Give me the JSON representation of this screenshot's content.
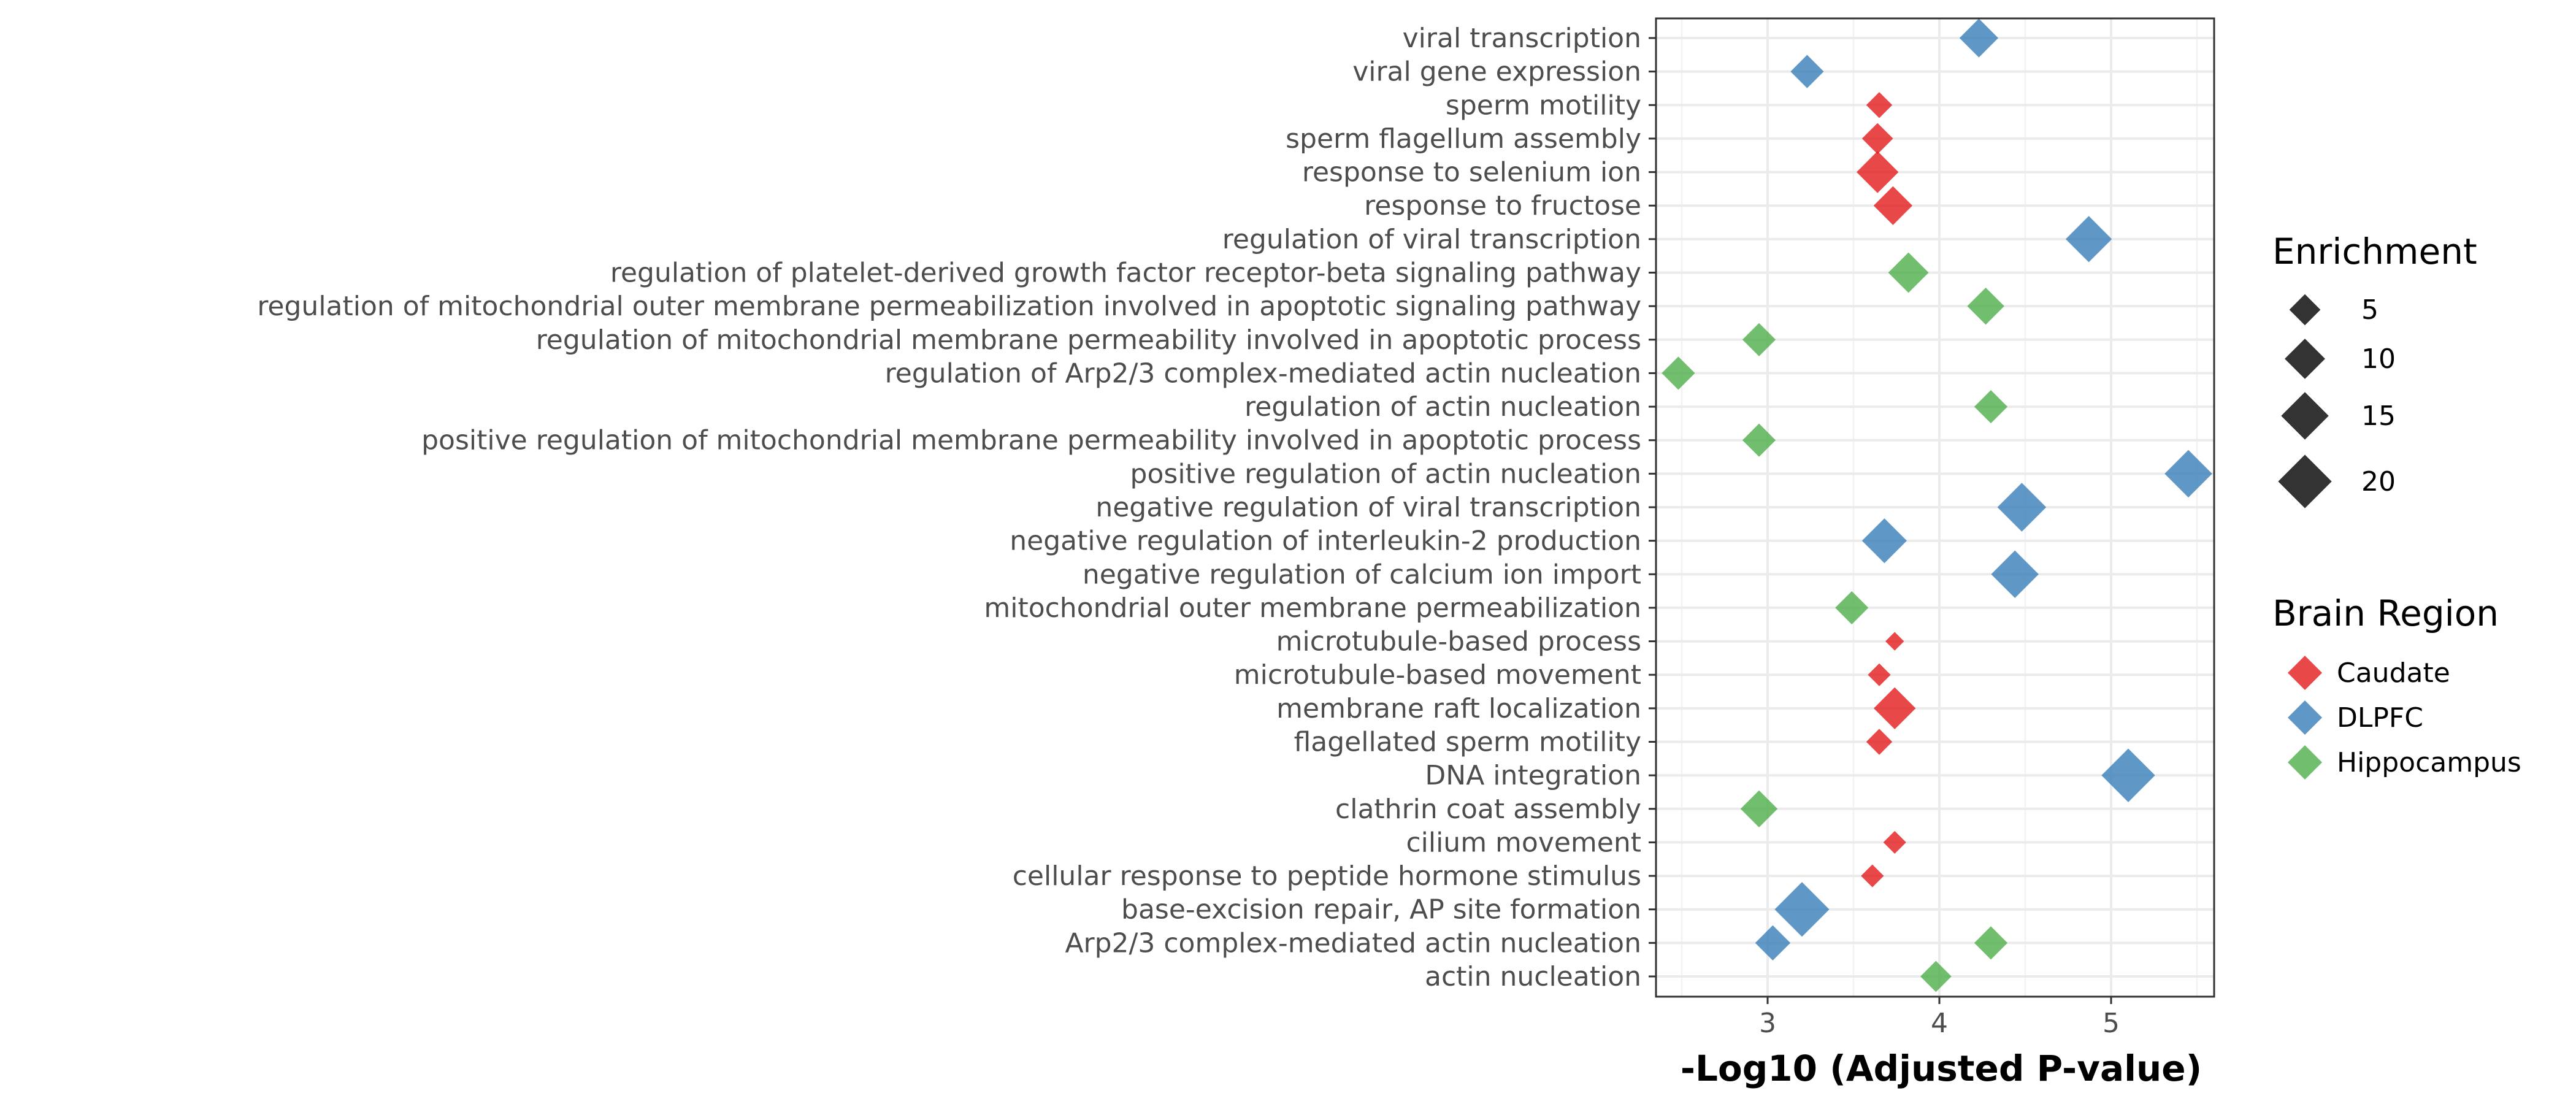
{
  "chart_data": {
    "type": "scatter",
    "xlabel": "-Log10 (Adjusted P-value)",
    "xlim": [
      2.35,
      5.6
    ],
    "xticks": [
      "3",
      "4",
      "5"
    ],
    "xtick_values": [
      3,
      4,
      5
    ],
    "grid": true,
    "point_shape": "diamond",
    "categories": [
      "viral transcription",
      "viral gene expression",
      "sperm motility",
      "sperm flagellum assembly",
      "response to selenium ion",
      "response to fructose",
      "regulation of viral transcription",
      "regulation of platelet-derived growth factor receptor-beta signaling pathway",
      "regulation of mitochondrial outer membrane permeabilization involved in apoptotic signaling pathway",
      "regulation of mitochondrial membrane permeability involved in apoptotic process",
      "regulation of Arp2/3 complex-mediated actin nucleation",
      "regulation of actin nucleation",
      "positive regulation of mitochondrial membrane permeability involved in apoptotic process",
      "positive regulation of actin nucleation",
      "negative regulation of viral transcription",
      "negative regulation of interleukin-2 production",
      "negative regulation of calcium ion import",
      "mitochondrial outer membrane permeabilization",
      "microtubule-based process",
      "microtubule-based movement",
      "membrane raft localization",
      "flagellated sperm motility",
      "DNA integration",
      "clathrin coat assembly",
      "cilium movement",
      "cellular response to peptide hormone stimulus",
      "base-excision repair, AP site formation",
      "Arp2/3 complex-mediated actin nucleation",
      "actin nucleation"
    ],
    "series": [
      {
        "name": "Caudate",
        "color": "#E41A1C",
        "points": [
          {
            "term": "sperm motility",
            "x": 3.65,
            "enrichment": 3
          },
          {
            "term": "sperm flagellum assembly",
            "x": 3.64,
            "enrichment": 5
          },
          {
            "term": "response to selenium ion",
            "x": 3.64,
            "enrichment": 11
          },
          {
            "term": "response to fructose",
            "x": 3.73,
            "enrichment": 9
          },
          {
            "term": "microtubule-based process",
            "x": 3.74,
            "enrichment": 1
          },
          {
            "term": "microtubule-based movement",
            "x": 3.65,
            "enrichment": 2
          },
          {
            "term": "membrane raft localization",
            "x": 3.74,
            "enrichment": 11
          },
          {
            "term": "flagellated sperm motility",
            "x": 3.65,
            "enrichment": 3
          },
          {
            "term": "cilium movement",
            "x": 3.74,
            "enrichment": 2
          },
          {
            "term": "cellular response to peptide hormone stimulus",
            "x": 3.61,
            "enrichment": 2
          }
        ]
      },
      {
        "name": "DLPFC",
        "color": "#377EB8",
        "points": [
          {
            "term": "viral transcription",
            "x": 4.23,
            "enrichment": 9
          },
          {
            "term": "viral gene expression",
            "x": 3.23,
            "enrichment": 6
          },
          {
            "term": "regulation of viral transcription",
            "x": 4.87,
            "enrichment": 14
          },
          {
            "term": "positive regulation of actin nucleation",
            "x": 5.45,
            "enrichment": 15
          },
          {
            "term": "negative regulation of viral transcription",
            "x": 4.48,
            "enrichment": 16
          },
          {
            "term": "negative regulation of interleukin-2 production",
            "x": 3.68,
            "enrichment": 13
          },
          {
            "term": "negative regulation of calcium ion import",
            "x": 4.44,
            "enrichment": 15
          },
          {
            "term": "DNA integration",
            "x": 5.1,
            "enrichment": 20
          },
          {
            "term": "base-excision repair, AP site formation",
            "x": 3.2,
            "enrichment": 21
          },
          {
            "term": "Arp2/3 complex-mediated actin nucleation",
            "x": 3.03,
            "enrichment": 7
          }
        ]
      },
      {
        "name": "Hippocampus",
        "color": "#4DAF4A",
        "points": [
          {
            "term": "regulation of platelet-derived growth factor receptor-beta signaling pathway",
            "x": 3.82,
            "enrichment": 10
          },
          {
            "term": "regulation of mitochondrial outer membrane permeabilization involved in apoptotic signaling pathway",
            "x": 4.27,
            "enrichment": 8
          },
          {
            "term": "regulation of mitochondrial membrane permeability involved in apoptotic process",
            "x": 2.95,
            "enrichment": 6
          },
          {
            "term": "regulation of Arp2/3 complex-mediated actin nucleation",
            "x": 2.48,
            "enrichment": 6
          },
          {
            "term": "regulation of actin nucleation",
            "x": 4.3,
            "enrichment": 6
          },
          {
            "term": "positive regulation of mitochondrial membrane permeability involved in apoptotic process",
            "x": 2.95,
            "enrichment": 6
          },
          {
            "term": "mitochondrial outer membrane permeabilization",
            "x": 3.49,
            "enrichment": 6
          },
          {
            "term": "clathrin coat assembly",
            "x": 2.95,
            "enrichment": 8
          },
          {
            "term": "Arp2/3 complex-mediated actin nucleation",
            "x": 4.3,
            "enrichment": 6
          },
          {
            "term": "actin nucleation",
            "x": 3.98,
            "enrichment": 5
          }
        ]
      }
    ],
    "size_legend": {
      "title": "Enrichment",
      "labels": [
        "5",
        "10",
        "15",
        "20"
      ],
      "values": [
        5,
        10,
        15,
        20
      ]
    },
    "color_legend": {
      "title": "Brain Region",
      "labels": [
        "Caudate",
        "DLPFC",
        "Hippocampus"
      ]
    }
  }
}
